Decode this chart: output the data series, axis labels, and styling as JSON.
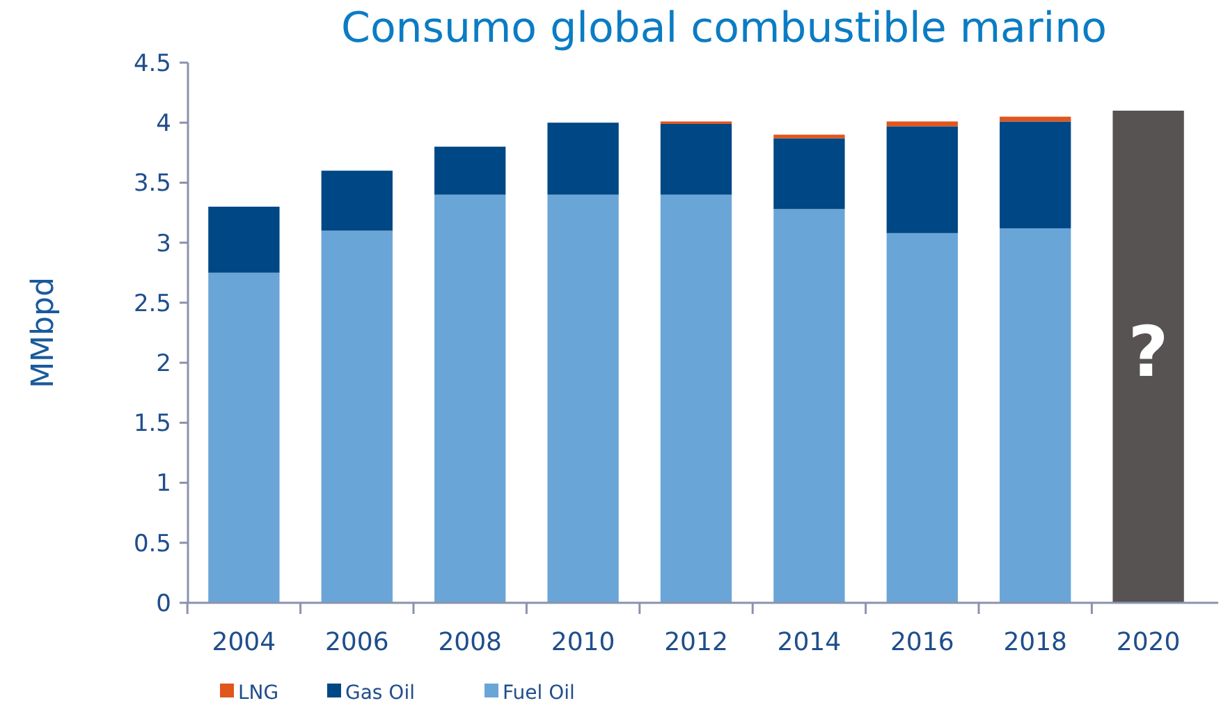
{
  "chart_data": {
    "type": "bar",
    "title": "Consumo global combustible marino",
    "ylabel": "MMbpd",
    "stacked": true,
    "legend": "bottom left",
    "categories": [
      "2004",
      "2006",
      "2008",
      "2010",
      "2012",
      "2014",
      "2016",
      "2018",
      "2020"
    ],
    "series": [
      {
        "name": "Fuel Oil",
        "color": "#6aa5d8",
        "values": [
          2.75,
          3.1,
          3.4,
          3.4,
          3.4,
          3.28,
          3.08,
          3.12,
          null
        ]
      },
      {
        "name": "Gas Oil",
        "color": "#004785",
        "values": [
          0.55,
          0.5,
          0.4,
          0.6,
          0.59,
          0.59,
          0.89,
          0.89,
          null
        ]
      },
      {
        "name": "LNG",
        "color": "#e0561c",
        "values": [
          null,
          null,
          null,
          null,
          0.02,
          0.03,
          0.04,
          0.04,
          null
        ]
      },
      {
        "color": "#575352",
        "values": [
          null,
          null,
          null,
          null,
          null,
          null,
          null,
          null,
          4.1
        ]
      }
    ],
    "ylim": [
      0,
      4.5
    ],
    "yticks": [
      0,
      0.5,
      1,
      1.5,
      2,
      2.5,
      3,
      3.5,
      4,
      4.5
    ],
    "annotations": [
      "?"
    ]
  }
}
